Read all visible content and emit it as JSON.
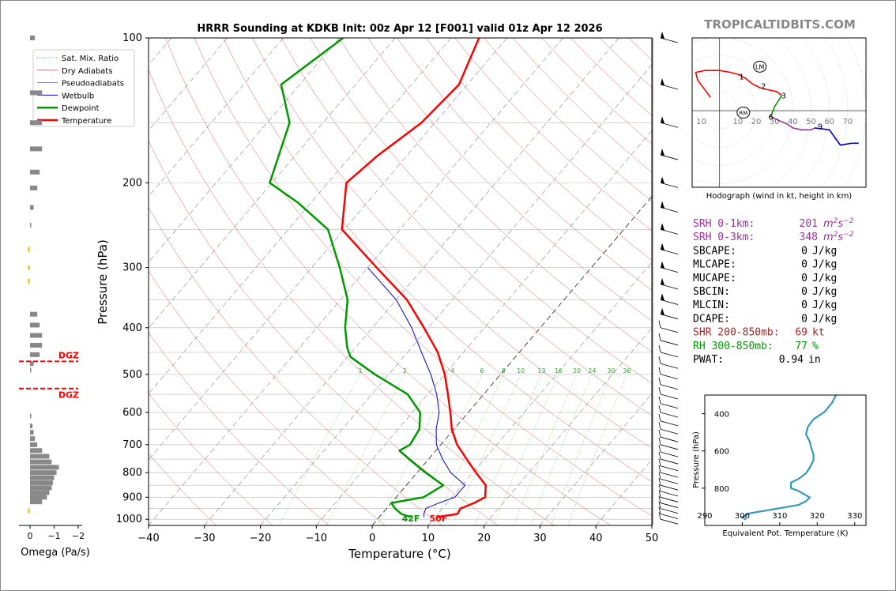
{
  "title": "HRRR Sounding at KDKB Init: 00z Apr 12 [F001] valid 01z Apr 12 2026",
  "watermark": "TROPICALTIDBITS.COM",
  "legend": [
    "Sat. Mix. Ratio",
    "Dry Adiabats",
    "Pseudoadiabats",
    "Wetbulb",
    "Dewpoint",
    "Temperature"
  ],
  "labels": {
    "dgz": "DGZ",
    "dew_surface": "42F",
    "temp_surface": "50F",
    "omega_xlabel": "Omega (Pa/s)",
    "hodograph_caption": "Hodograph (wind in kt, height in km)",
    "hodo_lm": "LM",
    "hodo_rm": "RM",
    "theta_e_xlabel": "Equivalent Pot. Temperature (K)",
    "theta_e_ylabel": "Pressure (hPa)"
  },
  "colors": {
    "temperature": "#ff0000",
    "dewpoint": "#009900",
    "wetbulb": "#0000cc",
    "dry_adiabat": "#cc6666",
    "pseudoadiabat": "#6666cc",
    "mixing_ratio": "#33aa33",
    "isotherm": "#999999",
    "srh": "#993399",
    "shear": "#aa2222",
    "rh": "#009900",
    "theta_e": "#3399bb",
    "omega_up": "#ffd700",
    "omega_down": "#888888"
  },
  "indices": [
    {
      "label": "SRH 0-1km:",
      "value": "201",
      "unit": "m2s-2",
      "color": "srh"
    },
    {
      "label": "SRH 0-3km:",
      "value": "348",
      "unit": "m2s-2",
      "color": "srh"
    },
    {
      "label": "SBCAPE:",
      "value": "0",
      "unit": "J/kg",
      "color": "black"
    },
    {
      "label": "MLCAPE:",
      "value": "0",
      "unit": "J/kg",
      "color": "black"
    },
    {
      "label": "MUCAPE:",
      "value": "0",
      "unit": "J/kg",
      "color": "black"
    },
    {
      "label": "SBCIN:",
      "value": "0",
      "unit": "J/kg",
      "color": "black"
    },
    {
      "label": "MLCIN:",
      "value": "0",
      "unit": "J/kg",
      "color": "black"
    },
    {
      "label": "DCAPE:",
      "value": "0",
      "unit": "J/kg",
      "color": "black"
    },
    {
      "label": "SHR 200-850mb:",
      "value": "69",
      "unit": "kt",
      "color": "shear"
    },
    {
      "label": "RH 300-850mb:",
      "value": "77",
      "unit": "%",
      "color": "rh"
    },
    {
      "label": "PWAT:",
      "value": "0.94",
      "unit": "in",
      "color": "black"
    }
  ],
  "chart_data": [
    {
      "type": "line",
      "subtype": "skew-t",
      "title": "HRRR Sounding at KDKB Init: 00z Apr 12 [F001] valid 01z Apr 12 2026",
      "xlabel": "Temperature (°C)",
      "ylabel": "Pressure (hPa)",
      "xlim": [
        -40,
        50
      ],
      "ylim": [
        1030,
        100
      ],
      "y_log_scale": true,
      "xticks": [
        -40,
        -30,
        -20,
        -10,
        0,
        10,
        20,
        30,
        40,
        50
      ],
      "yticks": [
        100,
        200,
        300,
        400,
        500,
        600,
        700,
        800,
        900,
        1000
      ],
      "grid": true,
      "legend_position": "upper-left",
      "mixing_ratio_labels": [
        "1",
        "2",
        "4",
        "6",
        "8",
        "10",
        "13",
        "16",
        "20",
        "24",
        "30",
        "36"
      ],
      "series": [
        {
          "name": "Temperature",
          "color": "temperature",
          "points": [
            [
              10.3,
              990
            ],
            [
              13.5,
              975
            ],
            [
              13.2,
              950
            ],
            [
              14.8,
              925
            ],
            [
              15.9,
              900
            ],
            [
              14.2,
              850
            ],
            [
              10.5,
              800
            ],
            [
              6.8,
              750
            ],
            [
              2.9,
              700
            ],
            [
              -0.4,
              650
            ],
            [
              -3.2,
              600
            ],
            [
              -6.4,
              550
            ],
            [
              -10,
              500
            ],
            [
              -14.6,
              450
            ],
            [
              -20.8,
              400
            ],
            [
              -28.1,
              350
            ],
            [
              -38.4,
              300
            ],
            [
              -50.4,
              250
            ],
            [
              -56.7,
              200
            ],
            [
              -55.2,
              175
            ],
            [
              -52.4,
              150
            ],
            [
              -51.5,
              125
            ],
            [
              -55,
              100
            ]
          ]
        },
        {
          "name": "Dewpoint",
          "color": "dewpoint",
          "points": [
            [
              5.6,
              990
            ],
            [
              3.5,
              975
            ],
            [
              1.5,
              950
            ],
            [
              0,
              925
            ],
            [
              4.9,
              900
            ],
            [
              6.6,
              850
            ],
            [
              1.5,
              800
            ],
            [
              -3.5,
              750
            ],
            [
              -6.5,
              720
            ],
            [
              -5.5,
              700
            ],
            [
              -6.2,
              650
            ],
            [
              -8.6,
              600
            ],
            [
              -13.6,
              550
            ],
            [
              -22.5,
              500
            ],
            [
              -29.5,
              460
            ],
            [
              -31.5,
              440
            ],
            [
              -34.9,
              400
            ],
            [
              -38.7,
              350
            ],
            [
              -45,
              300
            ],
            [
              -52.9,
              250
            ],
            [
              -62.3,
              220
            ],
            [
              -70.4,
              200
            ],
            [
              -76,
              150
            ],
            [
              -83.3,
              125
            ],
            [
              -79.3,
              100
            ]
          ]
        },
        {
          "name": "Wetbulb",
          "color": "wetbulb",
          "points": [
            [
              8,
              990
            ],
            [
              7.5,
              975
            ],
            [
              7,
              950
            ],
            [
              8.5,
              925
            ],
            [
              10.5,
              900
            ],
            [
              10.5,
              850
            ],
            [
              6,
              800
            ],
            [
              2.5,
              750
            ],
            [
              -0.8,
              700
            ],
            [
              -3.2,
              650
            ],
            [
              -5.2,
              600
            ],
            [
              -8.4,
              550
            ],
            [
              -12.5,
              500
            ],
            [
              -17.5,
              450
            ],
            [
              -23,
              400
            ],
            [
              -30,
              350
            ],
            [
              -40,
              300
            ]
          ]
        }
      ]
    },
    {
      "type": "bar",
      "subtype": "omega-profile",
      "xlabel": "Omega (Pa/s)",
      "xlim": [
        0.3,
        -2.2
      ],
      "xticks": [
        "0",
        "−1",
        "−2"
      ],
      "dgz_pressures": [
        470,
        535
      ],
      "bars": [
        [
          100,
          -0.2
        ],
        [
          130,
          -0.5
        ],
        [
          150,
          -0.5
        ],
        [
          170,
          -0.5
        ],
        [
          190,
          -0.4
        ],
        [
          205,
          -0.3
        ],
        [
          225,
          -0.15
        ],
        [
          245,
          -0.05
        ],
        [
          275,
          0.1
        ],
        [
          300,
          0.1
        ],
        [
          320,
          0.1
        ],
        [
          375,
          -0.3
        ],
        [
          395,
          -0.4
        ],
        [
          415,
          -0.5
        ],
        [
          435,
          -0.5
        ],
        [
          455,
          -0.4
        ],
        [
          475,
          -0.15
        ],
        [
          490,
          -0.05
        ],
        [
          610,
          -0.05
        ],
        [
          640,
          -0.1
        ],
        [
          660,
          -0.15
        ],
        [
          680,
          -0.2
        ],
        [
          700,
          -0.3
        ],
        [
          720,
          -0.5
        ],
        [
          740,
          -0.8
        ],
        [
          760,
          -0.9
        ],
        [
          780,
          -1.2
        ],
        [
          800,
          -1.1
        ],
        [
          820,
          -1.0
        ],
        [
          840,
          -0.95
        ],
        [
          860,
          -0.9
        ],
        [
          880,
          -0.8
        ],
        [
          900,
          -0.7
        ],
        [
          920,
          -0.5
        ],
        [
          960,
          0.1
        ]
      ]
    },
    {
      "type": "line",
      "subtype": "hodograph",
      "caption": "Hodograph (wind in kt, height in km)",
      "xlim": [
        -15,
        80
      ],
      "ylim": [
        -40,
        38
      ],
      "ring_labels": [
        "10",
        "10",
        "20",
        "30",
        "40",
        "50",
        "60",
        "70"
      ],
      "height_labels": [
        {
          "text": "1",
          "u": 12,
          "v": 18
        },
        {
          "text": "2",
          "u": 24,
          "v": 13
        },
        {
          "text": "3",
          "u": 35,
          "v": 8
        },
        {
          "text": "6",
          "u": 28,
          "v": -3
        },
        {
          "text": "9",
          "u": 55,
          "v": -8
        }
      ],
      "storm_motion": {
        "LM": {
          "u": 22,
          "v": 23
        },
        "RM": {
          "u": 13,
          "v": -1
        }
      },
      "series": [
        {
          "color": "temperature",
          "points": [
            [
              -5,
              7
            ],
            [
              -12,
              16
            ],
            [
              -13,
              20
            ],
            [
              -8,
              21
            ],
            [
              0,
              21
            ],
            [
              6,
              20
            ],
            [
              10,
              19
            ],
            [
              14,
              17
            ],
            [
              18,
              14
            ],
            [
              22,
              12
            ],
            [
              26,
              11
            ],
            [
              31,
              10
            ],
            [
              34,
              8
            ]
          ]
        },
        {
          "color": "dewpoint",
          "points": [
            [
              34,
              8
            ],
            [
              32,
              5
            ],
            [
              30,
              2
            ],
            [
              28,
              -3
            ]
          ]
        },
        {
          "color": "srh",
          "points": [
            [
              28,
              -3
            ],
            [
              32,
              -5
            ],
            [
              37,
              -7
            ],
            [
              40,
              -9
            ],
            [
              45,
              -10
            ],
            [
              50,
              -10
            ],
            [
              52,
              -9
            ]
          ]
        },
        {
          "color": "wetbulb",
          "points": [
            [
              52,
              -9
            ],
            [
              60,
              -10
            ],
            [
              63,
              -14
            ],
            [
              66,
              -18
            ],
            [
              72,
              -17
            ],
            [
              76,
              -17
            ]
          ]
        }
      ]
    },
    {
      "type": "line",
      "subtype": "theta-e-profile",
      "xlabel": "Equivalent Pot. Temperature (K)",
      "ylabel": "Pressure (hPa)",
      "xlim": [
        290,
        333
      ],
      "ylim": [
        1000,
        300
      ],
      "xticks": [
        290,
        300,
        310,
        320,
        330
      ],
      "yticks": [
        400,
        600,
        800
      ],
      "series": [
        {
          "name": "Theta-E",
          "color": "theta_e",
          "points": [
            [
              301,
              970
            ],
            [
              300,
              955
            ],
            [
              302,
              935
            ],
            [
              315,
              890
            ],
            [
              317,
              870
            ],
            [
              318,
              850
            ],
            [
              315,
              815
            ],
            [
              313,
              800
            ],
            [
              313,
              770
            ],
            [
              315,
              750
            ],
            [
              317,
              720
            ],
            [
              318,
              690
            ],
            [
              319,
              650
            ],
            [
              319,
              620
            ],
            [
              318.5,
              590
            ],
            [
              318,
              550
            ],
            [
              317,
              510
            ],
            [
              317.5,
              470
            ],
            [
              319,
              430
            ],
            [
              322,
              390
            ],
            [
              324,
              340
            ],
            [
              325,
              300
            ]
          ]
        }
      ]
    }
  ]
}
